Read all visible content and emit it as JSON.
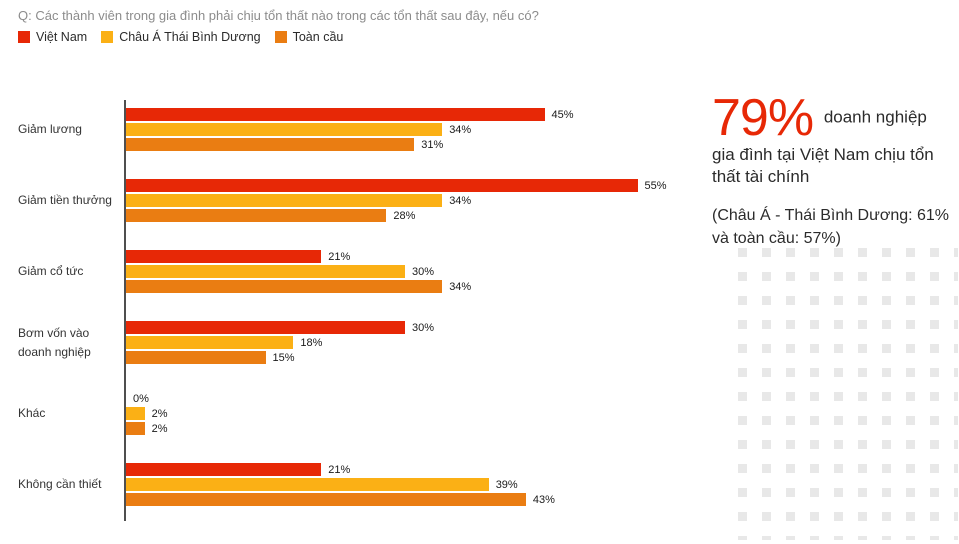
{
  "header": {
    "question": "Q: Các thành viên trong gia đình phải chịu tổn thất nào trong các tổn thất sau đây, nếu có?"
  },
  "legend": {
    "items": [
      {
        "label": "Việt Nam",
        "color": "#e72806"
      },
      {
        "label": "Châu Á Thái Bình Dương",
        "color": "#fbb015"
      },
      {
        "label": "Toàn cầu",
        "color": "#ea7d12"
      }
    ]
  },
  "chart_data": {
    "type": "bar",
    "orientation": "horizontal",
    "title": "Q: Các thành viên trong gia đình phải chịu tổn thất nào trong các tổn thất sau đây, nếu có?",
    "categories": [
      "Giảm lương",
      "Giảm tiền thưởng",
      "Giảm cổ tức",
      "Bơm vốn vào doanh nghiệp",
      "Khác",
      "Không cần thiết"
    ],
    "series": [
      {
        "name": "Việt Nam",
        "color": "#e72806",
        "values": [
          45,
          55,
          21,
          30,
          0,
          21
        ]
      },
      {
        "name": "Châu Á Thái Bình Dương",
        "color": "#fbb015",
        "values": [
          34,
          34,
          30,
          18,
          2,
          39
        ]
      },
      {
        "name": "Toàn cầu",
        "color": "#ea7d12",
        "values": [
          31,
          28,
          34,
          15,
          2,
          43
        ]
      }
    ],
    "value_suffix": "%",
    "xlim": [
      0,
      60
    ],
    "grid": false,
    "legend_position": "top"
  },
  "callout": {
    "big_value": "79%",
    "text_after": "doanh nghiệp gia đình tại Việt Nam chịu tổn thất tài chính",
    "note": "(Châu Á - Thái Bình Dương: 61% và toàn cầu: 57%)",
    "accent_color": "#e72806"
  },
  "colors": {
    "axis": "#4f4f4f",
    "dots": "#e8e8e8",
    "question_text": "#8c8c8c"
  }
}
